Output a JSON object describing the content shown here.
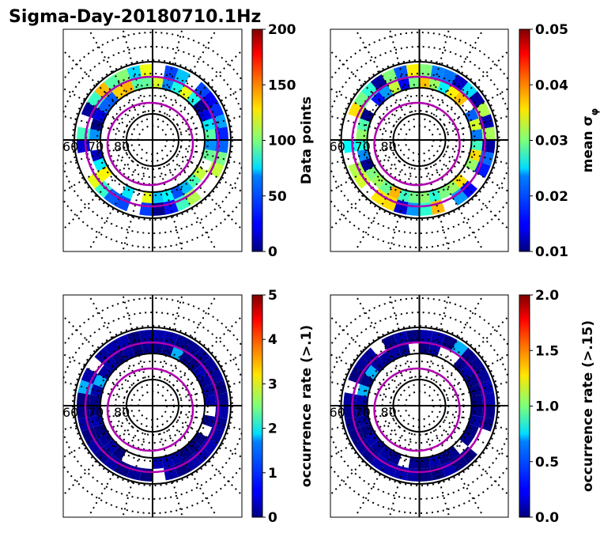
{
  "title": "Sigma-Day-20180710.1Hz",
  "chart_data": [
    {
      "type": "heatmap",
      "projection": "polar",
      "lat_labels": [
        "60",
        "70",
        "80"
      ],
      "colormap": "jet",
      "colorbar": {
        "label": "Data points",
        "range": [
          0,
          200
        ],
        "ticks": [
          "0",
          "50",
          "100",
          "150",
          "200"
        ]
      },
      "level": 0.35
    },
    {
      "type": "heatmap",
      "projection": "polar",
      "lat_labels": [
        "60",
        "70",
        "80"
      ],
      "colormap": "jet",
      "colorbar": {
        "label": "mean σ",
        "label_sub": "φ",
        "range": [
          0.01,
          0.05
        ],
        "ticks": [
          "0.01",
          "0.02",
          "0.03",
          "0.04",
          "0.05"
        ]
      },
      "level": 0.35
    },
    {
      "type": "heatmap",
      "projection": "polar",
      "lat_labels": [
        "60",
        "70",
        "80"
      ],
      "colormap": "jet",
      "colorbar": {
        "label": "occurrence rate (>.1)",
        "range": [
          0,
          5
        ],
        "ticks": [
          "0",
          "1",
          "2",
          "3",
          "4",
          "5"
        ]
      },
      "level": 0.02
    },
    {
      "type": "heatmap",
      "projection": "polar",
      "lat_labels": [
        "60",
        "70",
        "80"
      ],
      "colormap": "jet",
      "colorbar": {
        "label": "occurrence rate (>.15)",
        "range": [
          0.0,
          2.0
        ],
        "ticks": [
          "0.0",
          "0.5",
          "1.0",
          "1.5",
          "2.0"
        ]
      },
      "level": 0.02
    }
  ]
}
